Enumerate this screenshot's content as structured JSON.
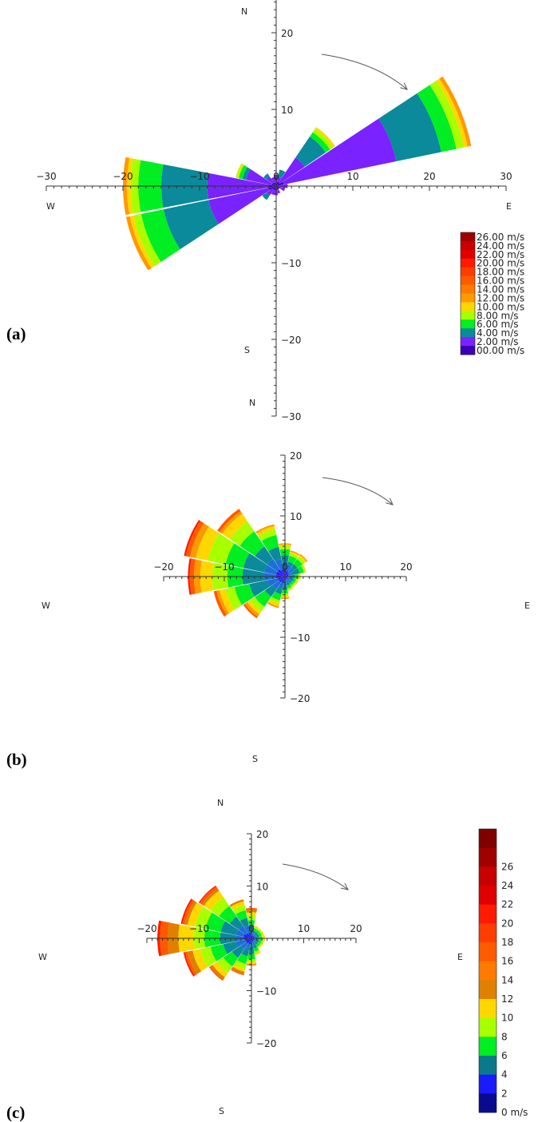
{
  "chart_data": [
    {
      "type": "polar-bar",
      "panel_label": "(a)",
      "compass": {
        "n": "N",
        "s": "S",
        "e": "E",
        "w": "W"
      },
      "xlim": [
        -30,
        30
      ],
      "ylim": [
        -30,
        30
      ],
      "x_ticks": [
        -30,
        -20,
        -10,
        0,
        10,
        20,
        30
      ],
      "y_ticks": [
        -30,
        -20,
        -10,
        0,
        10,
        20,
        30
      ],
      "x_tick_labels": [
        "−30",
        "−20",
        "−10",
        "0",
        "10",
        "20",
        "30"
      ],
      "y_tick_labels": [
        "−30",
        "−20",
        "−10",
        "",
        "10",
        "20",
        "30"
      ],
      "legend": {
        "labels": [
          "26.00 m/s",
          "24.00 m/s",
          "22.00 m/s",
          "20.00 m/s",
          "18.00 m/s",
          "16.00 m/s",
          "14.00 m/s",
          "12.00 m/s",
          "10.00 m/s",
          "8.00 m/s",
          "6.00 m/s",
          "4.00 m/s",
          "2.00 m/s",
          "00.00 m/s"
        ],
        "colors": [
          "#a00000",
          "#c80000",
          "#e00000",
          "#ff1a00",
          "#ff3d00",
          "#ff5a00",
          "#ff7a00",
          "#ff9900",
          "#ffd700",
          "#a8ff00",
          "#00ee22",
          "#0a8a9a",
          "#7a22ff",
          "#3a00b8"
        ]
      },
      "band_colors": [
        "#3a00b8",
        "#7a22ff",
        "#0a8a9a",
        "#00ee22",
        "#a8ff00",
        "#ffd700",
        "#ff9900",
        "#ff5a00",
        "#ff1a00"
      ],
      "sectors": [
        {
          "dir": 0,
          "bounds": [
            0.5,
            1.5
          ]
        },
        {
          "dir": 22.5,
          "bounds": [
            0.6,
            1.2,
            2.2
          ]
        },
        {
          "dir": 45,
          "bounds": [
            0.6,
            4.5,
            7.8,
            8.5,
            9,
            9.3
          ]
        },
        {
          "dir": 67.5,
          "bounds": [
            1,
            16,
            22,
            24,
            25,
            25.5,
            26
          ]
        },
        {
          "dir": 90,
          "bounds": [
            0.5,
            1.5
          ]
        },
        {
          "dir": 112.5,
          "bounds": [
            0.5,
            1.2
          ]
        },
        {
          "dir": 135,
          "bounds": [
            0.5
          ]
        },
        {
          "dir": 157.5,
          "bounds": [
            0.5,
            1
          ]
        },
        {
          "dir": 180,
          "bounds": [
            0.6,
            1.2
          ]
        },
        {
          "dir": 202.5,
          "bounds": [
            0.6,
            1.2
          ]
        },
        {
          "dir": 225,
          "bounds": [
            0.6,
            1.5,
            2.2
          ]
        },
        {
          "dir": 247.5,
          "bounds": [
            1,
            9,
            15,
            18,
            19,
            19.5,
            20
          ]
        },
        {
          "dir": 270,
          "bounds": [
            1,
            9,
            15,
            18,
            19,
            19.5,
            20
          ]
        },
        {
          "dir": 292.5,
          "bounds": [
            0.6,
            4,
            4.5,
            5,
            5.2,
            5.4
          ]
        },
        {
          "dir": 315,
          "bounds": [
            0.6,
            1.5,
            2
          ]
        },
        {
          "dir": 337.5,
          "bounds": [
            0.5,
            1.2
          ]
        }
      ],
      "sector_width": 22.5
    },
    {
      "type": "polar-bar",
      "panel_label": "(b)",
      "compass": {
        "n": "N",
        "s": "S",
        "e": "E",
        "w": "W"
      },
      "xlim": [
        -20,
        20
      ],
      "ylim": [
        -20,
        20
      ],
      "x_ticks": [
        -20,
        -10,
        0,
        10,
        20
      ],
      "y_ticks": [
        -20,
        -10,
        0,
        10,
        20
      ],
      "x_tick_labels": [
        "−20",
        "−10",
        "0",
        "10",
        "20"
      ],
      "y_tick_labels": [
        "−20",
        "−10",
        "",
        "10",
        "20"
      ],
      "band_colors": [
        "#2a1aff",
        "#1c6fd6",
        "#0a8a9a",
        "#00ee22",
        "#a8ff00",
        "#ffd700",
        "#ff9900",
        "#ff5a00",
        "#ff1a00"
      ],
      "sectors": [
        {
          "dir": 0,
          "bounds": [
            1,
            2,
            3.5,
            4.5,
            5,
            5.3,
            5.5
          ]
        },
        {
          "dir": 22.5,
          "bounds": [
            1,
            2,
            2.5,
            3.5,
            4,
            4.2,
            4.4
          ]
        },
        {
          "dir": 45,
          "bounds": [
            0.8,
            1.8,
            2.5,
            3.5,
            4,
            4.3,
            4.5
          ]
        },
        {
          "dir": 67.5,
          "bounds": [
            0.6,
            1.2,
            2.5,
            3.2,
            3.4,
            3.6
          ]
        },
        {
          "dir": 90,
          "bounds": [
            0.5,
            1,
            1.6,
            2.2,
            2.4,
            2.6
          ]
        },
        {
          "dir": 112.5,
          "bounds": [
            0.5,
            1,
            1.5,
            1.9,
            2.1,
            2.3
          ]
        },
        {
          "dir": 135,
          "bounds": [
            0.5,
            1,
            1.4,
            1.8,
            2,
            2.2
          ]
        },
        {
          "dir": 157.5,
          "bounds": [
            0.5,
            1,
            1.5,
            2,
            2.2,
            2.4
          ]
        },
        {
          "dir": 180,
          "bounds": [
            0.6,
            1.5,
            2.2,
            2.8,
            3.2,
            3.5,
            3.7
          ]
        },
        {
          "dir": 202.5,
          "bounds": [
            1,
            2,
            3,
            4,
            4.5,
            5,
            5.3
          ]
        },
        {
          "dir": 225,
          "bounds": [
            1.2,
            2.5,
            4,
            6,
            7,
            7.5,
            8,
            8.3
          ]
        },
        {
          "dir": 247.5,
          "bounds": [
            1.2,
            3,
            6,
            8.5,
            10,
            11,
            11.5,
            12
          ]
        },
        {
          "dir": 270,
          "bounds": [
            1.5,
            3.5,
            7,
            9.5,
            12,
            14,
            15,
            15.7,
            16
          ]
        },
        {
          "dir": 292.5,
          "bounds": [
            1.5,
            3.5,
            7,
            10,
            13,
            15,
            16,
            16.7,
            17
          ]
        },
        {
          "dir": 315,
          "bounds": [
            1.5,
            3.5,
            6,
            9,
            11,
            12.5,
            13,
            13.5
          ]
        },
        {
          "dir": 337.5,
          "bounds": [
            1.2,
            3,
            5,
            7,
            8,
            8.5,
            8.8
          ]
        }
      ],
      "sector_width": 22.5
    },
    {
      "type": "polar-bar",
      "panel_label": "(c)",
      "compass": {
        "n": "N",
        "s": "S",
        "e": "E",
        "w": "W"
      },
      "xlim": [
        -20,
        20
      ],
      "ylim": [
        -20,
        20
      ],
      "x_ticks": [
        -20,
        -10,
        0,
        10,
        20
      ],
      "y_ticks": [
        -20,
        -10,
        0,
        10,
        20
      ],
      "x_tick_labels": [
        "−20",
        "−10",
        "0",
        "10",
        "20"
      ],
      "y_tick_labels": [
        "−20",
        "−10",
        "",
        "10",
        "20"
      ],
      "legend": {
        "labels": [
          "",
          "26",
          "24",
          "22",
          "20",
          "18",
          "16",
          "14",
          "12",
          "10",
          "8",
          "6",
          "4",
          "2",
          "0 m/s"
        ],
        "colors": [
          "#800000",
          "#a00000",
          "#c80000",
          "#e00000",
          "#ff1a00",
          "#ff3d00",
          "#ff5a00",
          "#ff7a00",
          "#e08000",
          "#ffd700",
          "#a8ff00",
          "#00ee22",
          "#0a7a8a",
          "#1a1aff",
          "#0a0a90"
        ]
      },
      "band_colors": [
        "#1a1aff",
        "#1c6fd6",
        "#0a8a9a",
        "#00ee22",
        "#a8ff00",
        "#ffd700",
        "#e08000",
        "#ff5a00",
        "#ff1a00"
      ],
      "sectors": [
        {
          "dir": 0,
          "bounds": [
            0.6,
            1.5,
            2.5,
            3.5,
            4.5,
            5,
            5.5,
            5.8
          ]
        },
        {
          "dir": 22.5,
          "bounds": [
            0.6,
            1,
            1.5,
            2,
            2.3,
            2.5
          ]
        },
        {
          "dir": 45,
          "bounds": [
            0.6,
            1,
            1.5,
            2,
            2.2,
            2.4
          ]
        },
        {
          "dir": 67.5,
          "bounds": [
            0.6,
            1,
            1.5,
            2,
            2.2,
            2.5
          ]
        },
        {
          "dir": 90,
          "bounds": [
            0.6,
            1,
            1.5,
            2,
            2.4,
            2.6
          ]
        },
        {
          "dir": 112.5,
          "bounds": [
            0.6,
            1,
            1.5,
            2,
            2.3,
            2.5
          ]
        },
        {
          "dir": 135,
          "bounds": [
            0.6,
            1,
            1.5,
            2,
            2.2,
            2.4
          ]
        },
        {
          "dir": 157.5,
          "bounds": [
            0.6,
            1.2,
            2,
            2.6,
            3,
            3.3
          ]
        },
        {
          "dir": 180,
          "bounds": [
            0.8,
            1.5,
            3,
            4,
            4.5,
            5,
            5.2
          ]
        },
        {
          "dir": 202.5,
          "bounds": [
            1,
            2,
            3.5,
            5,
            6,
            6.5,
            7,
            7.2
          ]
        },
        {
          "dir": 225,
          "bounds": [
            1.2,
            2.5,
            4.5,
            6.5,
            8,
            9,
            9.5,
            9.8
          ]
        },
        {
          "dir": 247.5,
          "bounds": [
            1.2,
            3,
            5.5,
            8,
            10,
            11.5,
            12.5,
            13,
            13.3
          ]
        },
        {
          "dir": 270,
          "bounds": [
            1.5,
            3,
            6,
            9,
            11,
            14,
            16,
            17.5,
            18
          ]
        },
        {
          "dir": 292.5,
          "bounds": [
            1.5,
            3,
            6,
            9,
            11,
            12.5,
            13,
            13.5,
            13.8
          ]
        },
        {
          "dir": 315,
          "bounds": [
            1.2,
            3,
            5,
            7.5,
            9.5,
            11,
            11.5,
            12,
            12.2
          ]
        },
        {
          "dir": 337.5,
          "bounds": [
            1,
            2.5,
            4,
            5.5,
            6.5,
            7.2,
            7.6
          ]
        }
      ],
      "sector_width": 22.5
    }
  ]
}
